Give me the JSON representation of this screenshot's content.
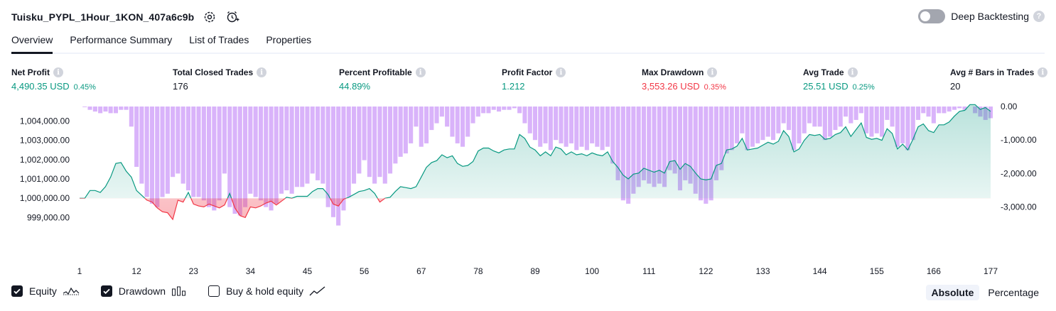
{
  "header": {
    "strategy_name": "Tuisku_PYPL_1Hour_1KON_407a6c9b",
    "settings_icon": "gear-icon",
    "alert_icon": "add-alarm-icon",
    "deep_backtesting_label": "Deep Backtesting",
    "deep_backtesting_on": false,
    "help_mark": "?"
  },
  "tabs": [
    {
      "label": "Overview",
      "active": true
    },
    {
      "label": "Performance Summary",
      "active": false
    },
    {
      "label": "List of Trades",
      "active": false
    },
    {
      "label": "Properties",
      "active": false
    }
  ],
  "metrics": [
    {
      "label": "Net Profit",
      "value": "4,490.35 USD",
      "sub": "0.45%",
      "color": "#089981"
    },
    {
      "label": "Total Closed Trades",
      "value": "176",
      "sub": "",
      "color": "#131722"
    },
    {
      "label": "Percent Profitable",
      "value": "44.89%",
      "sub": "",
      "color": "#089981"
    },
    {
      "label": "Profit Factor",
      "value": "1.212",
      "sub": "",
      "color": "#089981"
    },
    {
      "label": "Max Drawdown",
      "value": "3,553.26 USD",
      "sub": "0.35%",
      "color": "#f23645"
    },
    {
      "label": "Avg Trade",
      "value": "25.51 USD",
      "sub": "0.25%",
      "color": "#089981"
    },
    {
      "label": "Avg # Bars in Trades",
      "value": "20",
      "sub": "",
      "color": "#131722"
    }
  ],
  "info_mark": "i",
  "chart_data": {
    "type": "area",
    "x_ticks": [
      "1",
      "12",
      "23",
      "34",
      "45",
      "56",
      "67",
      "78",
      "89",
      "100",
      "111",
      "122",
      "133",
      "144",
      "155",
      "166",
      "177"
    ],
    "left_ticks": [
      "1,004,000.00",
      "1,003,000.00",
      "1,002,000.00",
      "1,001,000.00",
      "1,000,000.00",
      "999,000.00"
    ],
    "left_tick_values": [
      1004000,
      1003000,
      1002000,
      1001000,
      1000000,
      999000
    ],
    "right_ticks": [
      "0.00",
      "-1,000.00",
      "-2,000.00",
      "-3,000.00"
    ],
    "right_tick_values": [
      0,
      -1000,
      -2000,
      -3000
    ],
    "ylim_equity": [
      998500,
      1004750
    ],
    "ylim_drawdown": [
      -3600,
      0
    ],
    "baseline": 1000000,
    "equity_color": "#089981",
    "below_color": "#f23645",
    "drawdown_color": "#d9b3fa",
    "equity_key": [
      [
        1,
        1000000
      ],
      [
        2,
        1000000
      ],
      [
        3,
        1000400
      ],
      [
        4,
        1000400
      ],
      [
        5,
        1000300
      ],
      [
        6,
        1000600
      ],
      [
        7,
        1001100
      ],
      [
        8,
        1001800
      ],
      [
        9,
        1001850
      ],
      [
        10,
        1001400
      ],
      [
        11,
        1001100
      ],
      [
        12,
        1000400
      ],
      [
        13,
        1000150
      ],
      [
        14,
        999900
      ],
      [
        15,
        999800
      ],
      [
        16,
        999500
      ],
      [
        17,
        999300
      ],
      [
        18,
        999250
      ],
      [
        19,
        998900
      ],
      [
        20,
        999900
      ],
      [
        21,
        999800
      ],
      [
        22,
        1000300
      ],
      [
        23,
        999700
      ],
      [
        24,
        999600
      ],
      [
        25,
        999550
      ],
      [
        26,
        999700
      ],
      [
        27,
        999600
      ],
      [
        28,
        999500
      ],
      [
        29,
        999650
      ],
      [
        30,
        1000250
      ],
      [
        31,
        999500
      ],
      [
        32,
        999100
      ],
      [
        33,
        999000
      ],
      [
        34,
        999550
      ],
      [
        35,
        999500
      ],
      [
        36,
        999600
      ],
      [
        37,
        999750
      ],
      [
        38,
        999850
      ],
      [
        39,
        999650
      ],
      [
        40,
        999850
      ],
      [
        41,
        1000050
      ],
      [
        42,
        1000000
      ],
      [
        43,
        1000100
      ],
      [
        44,
        1000100
      ],
      [
        45,
        1000100
      ],
      [
        46,
        1000350
      ],
      [
        47,
        1000500
      ],
      [
        48,
        1000500
      ],
      [
        49,
        1000200
      ],
      [
        50,
        999700
      ],
      [
        51,
        999600
      ],
      [
        52,
        999950
      ],
      [
        53,
        1000050
      ],
      [
        54,
        1000200
      ],
      [
        55,
        1000350
      ],
      [
        56,
        1000400
      ],
      [
        57,
        1000500
      ],
      [
        58,
        1000250
      ],
      [
        59,
        999800
      ],
      [
        60,
        1000000
      ],
      [
        61,
        1000050
      ],
      [
        62,
        1000350
      ],
      [
        63,
        1000600
      ],
      [
        64,
        1000550
      ],
      [
        65,
        1000500
      ],
      [
        66,
        1000600
      ],
      [
        67,
        1001100
      ],
      [
        68,
        1001600
      ],
      [
        69,
        1001850
      ],
      [
        70,
        1001950
      ],
      [
        71,
        1002250
      ],
      [
        72,
        1002100
      ],
      [
        73,
        1002200
      ],
      [
        74,
        1001800
      ],
      [
        75,
        1001650
      ],
      [
        76,
        1001700
      ],
      [
        77,
        1001900
      ],
      [
        78,
        1002450
      ],
      [
        79,
        1002600
      ],
      [
        80,
        1002600
      ],
      [
        81,
        1002450
      ],
      [
        82,
        1002350
      ],
      [
        83,
        1002500
      ],
      [
        84,
        1002550
      ],
      [
        85,
        1002550
      ],
      [
        86,
        1003300
      ],
      [
        87,
        1003100
      ],
      [
        88,
        1002650
      ],
      [
        89,
        1002500
      ],
      [
        90,
        1002200
      ],
      [
        91,
        1002400
      ],
      [
        92,
        1002200
      ],
      [
        93,
        1002650
      ],
      [
        94,
        1002550
      ],
      [
        95,
        1002250
      ],
      [
        96,
        1002400
      ],
      [
        97,
        1002250
      ],
      [
        98,
        1002300
      ],
      [
        99,
        1002200
      ],
      [
        100,
        1002350
      ],
      [
        101,
        1002250
      ],
      [
        102,
        1002200
      ],
      [
        103,
        1002400
      ],
      [
        104,
        1001900
      ],
      [
        105,
        1001600
      ],
      [
        106,
        1001200
      ],
      [
        107,
        1001000
      ],
      [
        108,
        1001250
      ],
      [
        109,
        1001300
      ],
      [
        110,
        1001550
      ],
      [
        111,
        1001450
      ],
      [
        112,
        1001350
      ],
      [
        113,
        1001450
      ],
      [
        114,
        1001300
      ],
      [
        115,
        1001900
      ],
      [
        116,
        1001950
      ],
      [
        117,
        1001500
      ],
      [
        118,
        1001800
      ],
      [
        119,
        1001650
      ],
      [
        120,
        1001300
      ],
      [
        121,
        1001000
      ],
      [
        122,
        1000950
      ],
      [
        123,
        1001000
      ],
      [
        124,
        1001700
      ],
      [
        125,
        1001800
      ],
      [
        126,
        1002500
      ],
      [
        127,
        1002550
      ],
      [
        128,
        1002700
      ],
      [
        129,
        1003100
      ],
      [
        130,
        1002500
      ],
      [
        131,
        1002550
      ],
      [
        132,
        1002600
      ],
      [
        133,
        1002750
      ],
      [
        134,
        1002900
      ],
      [
        135,
        1002800
      ],
      [
        136,
        1002950
      ],
      [
        137,
        1003500
      ],
      [
        138,
        1003200
      ],
      [
        139,
        1002400
      ],
      [
        140,
        1002550
      ],
      [
        141,
        1003000
      ],
      [
        142,
        1003300
      ],
      [
        143,
        1003250
      ],
      [
        144,
        1003300
      ],
      [
        145,
        1003050
      ],
      [
        146,
        1003100
      ],
      [
        147,
        1003300
      ],
      [
        148,
        1003400
      ],
      [
        149,
        1003700
      ],
      [
        150,
        1003200
      ],
      [
        151,
        1003550
      ],
      [
        152,
        1003900
      ],
      [
        153,
        1003150
      ],
      [
        154,
        1003050
      ],
      [
        155,
        1003100
      ],
      [
        156,
        1003000
      ],
      [
        157,
        1003600
      ],
      [
        158,
        1003350
      ],
      [
        159,
        1002550
      ],
      [
        160,
        1002800
      ],
      [
        161,
        1002500
      ],
      [
        162,
        1003050
      ],
      [
        163,
        1003700
      ],
      [
        164,
        1003850
      ],
      [
        165,
        1003500
      ],
      [
        166,
        1003400
      ],
      [
        167,
        1003800
      ],
      [
        168,
        1003800
      ],
      [
        169,
        1003950
      ],
      [
        170,
        1004250
      ],
      [
        171,
        1004500
      ],
      [
        172,
        1004550
      ],
      [
        173,
        1004850
      ],
      [
        174,
        1004850
      ],
      [
        175,
        1004600
      ],
      [
        176,
        1004700
      ],
      [
        177,
        1004500
      ]
    ],
    "drawdown_key": [
      [
        1,
        0
      ],
      [
        2,
        -20
      ],
      [
        3,
        -100
      ],
      [
        4,
        -150
      ],
      [
        5,
        -200
      ],
      [
        6,
        -150
      ],
      [
        7,
        -200
      ],
      [
        8,
        -200
      ],
      [
        9,
        -100
      ],
      [
        10,
        -100
      ],
      [
        11,
        -600
      ],
      [
        12,
        -1800
      ],
      [
        13,
        -2300
      ],
      [
        14,
        -2700
      ],
      [
        15,
        -2900
      ],
      [
        16,
        -3000
      ],
      [
        17,
        -2700
      ],
      [
        18,
        -2600
      ],
      [
        19,
        -2100
      ],
      [
        20,
        -2000
      ],
      [
        21,
        -2300
      ],
      [
        22,
        -2500
      ],
      [
        23,
        -2700
      ],
      [
        24,
        -2700
      ],
      [
        25,
        -2800
      ],
      [
        26,
        -3000
      ],
      [
        27,
        -3100
      ],
      [
        28,
        -2800
      ],
      [
        29,
        -2000
      ],
      [
        30,
        -3000
      ],
      [
        31,
        -3200
      ],
      [
        32,
        -3250
      ],
      [
        33,
        -3000
      ],
      [
        34,
        -2600
      ],
      [
        35,
        -2700
      ],
      [
        36,
        -2800
      ],
      [
        37,
        -3000
      ],
      [
        38,
        -3100
      ],
      [
        39,
        -2900
      ],
      [
        40,
        -2600
      ],
      [
        41,
        -2500
      ],
      [
        42,
        -2600
      ],
      [
        43,
        -2400
      ],
      [
        44,
        -2400
      ],
      [
        45,
        -2300
      ],
      [
        46,
        -2000
      ],
      [
        47,
        -2200
      ],
      [
        48,
        -2300
      ],
      [
        49,
        -3000
      ],
      [
        50,
        -3300
      ],
      [
        51,
        -3550
      ],
      [
        52,
        -3100
      ],
      [
        53,
        -2700
      ],
      [
        54,
        -2300
      ],
      [
        55,
        -2000
      ],
      [
        56,
        -1600
      ],
      [
        57,
        -2100
      ],
      [
        58,
        -2300
      ],
      [
        59,
        -2100
      ],
      [
        60,
        -2300
      ],
      [
        61,
        -2000
      ],
      [
        62,
        -1700
      ],
      [
        63,
        -1500
      ],
      [
        64,
        -1400
      ],
      [
        65,
        -1100
      ],
      [
        66,
        -600
      ],
      [
        67,
        -1200
      ],
      [
        68,
        -1100
      ],
      [
        69,
        -700
      ],
      [
        70,
        -500
      ],
      [
        71,
        -300
      ],
      [
        72,
        -600
      ],
      [
        73,
        -900
      ],
      [
        74,
        -1100
      ],
      [
        75,
        -1200
      ],
      [
        76,
        -900
      ],
      [
        77,
        -500
      ],
      [
        78,
        -300
      ],
      [
        79,
        -200
      ],
      [
        80,
        -200
      ],
      [
        81,
        -100
      ],
      [
        82,
        -150
      ],
      [
        83,
        -100
      ],
      [
        84,
        -100
      ],
      [
        85,
        -50
      ],
      [
        86,
        -200
      ],
      [
        87,
        -500
      ],
      [
        88,
        -800
      ],
      [
        89,
        -1000
      ],
      [
        90,
        -1200
      ],
      [
        91,
        -1100
      ],
      [
        92,
        -1300
      ],
      [
        93,
        -1000
      ],
      [
        94,
        -1100
      ],
      [
        95,
        -1200
      ],
      [
        96,
        -1100
      ],
      [
        97,
        -1300
      ],
      [
        98,
        -1200
      ],
      [
        99,
        -1300
      ],
      [
        100,
        -1100
      ],
      [
        101,
        -1200
      ],
      [
        102,
        -1300
      ],
      [
        103,
        -1200
      ],
      [
        104,
        -1700
      ],
      [
        105,
        -2200
      ],
      [
        106,
        -2800
      ],
      [
        107,
        -2900
      ],
      [
        108,
        -2600
      ],
      [
        109,
        -2400
      ],
      [
        110,
        -2200
      ],
      [
        111,
        -2300
      ],
      [
        112,
        -2400
      ],
      [
        113,
        -2300
      ],
      [
        114,
        -2400
      ],
      [
        115,
        -1900
      ],
      [
        116,
        -2000
      ],
      [
        117,
        -2500
      ],
      [
        118,
        -2200
      ],
      [
        119,
        -2300
      ],
      [
        120,
        -2600
      ],
      [
        121,
        -2800
      ],
      [
        122,
        -2900
      ],
      [
        123,
        -2800
      ],
      [
        124,
        -2200
      ],
      [
        125,
        -1900
      ],
      [
        126,
        -1400
      ],
      [
        127,
        -1300
      ],
      [
        128,
        -1100
      ],
      [
        129,
        -800
      ],
      [
        130,
        -1300
      ],
      [
        131,
        -1200
      ],
      [
        132,
        -1100
      ],
      [
        133,
        -1000
      ],
      [
        134,
        -900
      ],
      [
        135,
        -1000
      ],
      [
        136,
        -800
      ],
      [
        137,
        -500
      ],
      [
        138,
        -700
      ],
      [
        139,
        -1300
      ],
      [
        140,
        -1100
      ],
      [
        141,
        -800
      ],
      [
        142,
        -500
      ],
      [
        143,
        -600
      ],
      [
        144,
        -600
      ],
      [
        145,
        -1000
      ],
      [
        146,
        -900
      ],
      [
        147,
        -700
      ],
      [
        148,
        -600
      ],
      [
        149,
        -300
      ],
      [
        150,
        -500
      ],
      [
        151,
        -400
      ],
      [
        152,
        -200
      ],
      [
        153,
        -800
      ],
      [
        154,
        -900
      ],
      [
        155,
        -800
      ],
      [
        156,
        -900
      ],
      [
        157,
        -400
      ],
      [
        158,
        -600
      ],
      [
        159,
        -1200
      ],
      [
        160,
        -1100
      ],
      [
        161,
        -1300
      ],
      [
        162,
        -1000
      ],
      [
        163,
        -400
      ],
      [
        164,
        -200
      ],
      [
        165,
        -300
      ],
      [
        166,
        -500
      ],
      [
        167,
        -200
      ],
      [
        168,
        -200
      ],
      [
        169,
        -150
      ],
      [
        170,
        -100
      ],
      [
        171,
        -50
      ],
      [
        172,
        -100
      ],
      [
        173,
        0
      ],
      [
        174,
        -200
      ],
      [
        175,
        -300
      ],
      [
        176,
        -400
      ],
      [
        177,
        -350
      ]
    ]
  },
  "legend": {
    "equity_label": "Equity",
    "drawdown_label": "Drawdown",
    "buyhold_label": "Buy & hold equity",
    "equity_checked": true,
    "drawdown_checked": true,
    "buyhold_checked": false
  },
  "view_modes": [
    {
      "label": "Absolute",
      "selected": true
    },
    {
      "label": "Percentage",
      "selected": false
    }
  ]
}
